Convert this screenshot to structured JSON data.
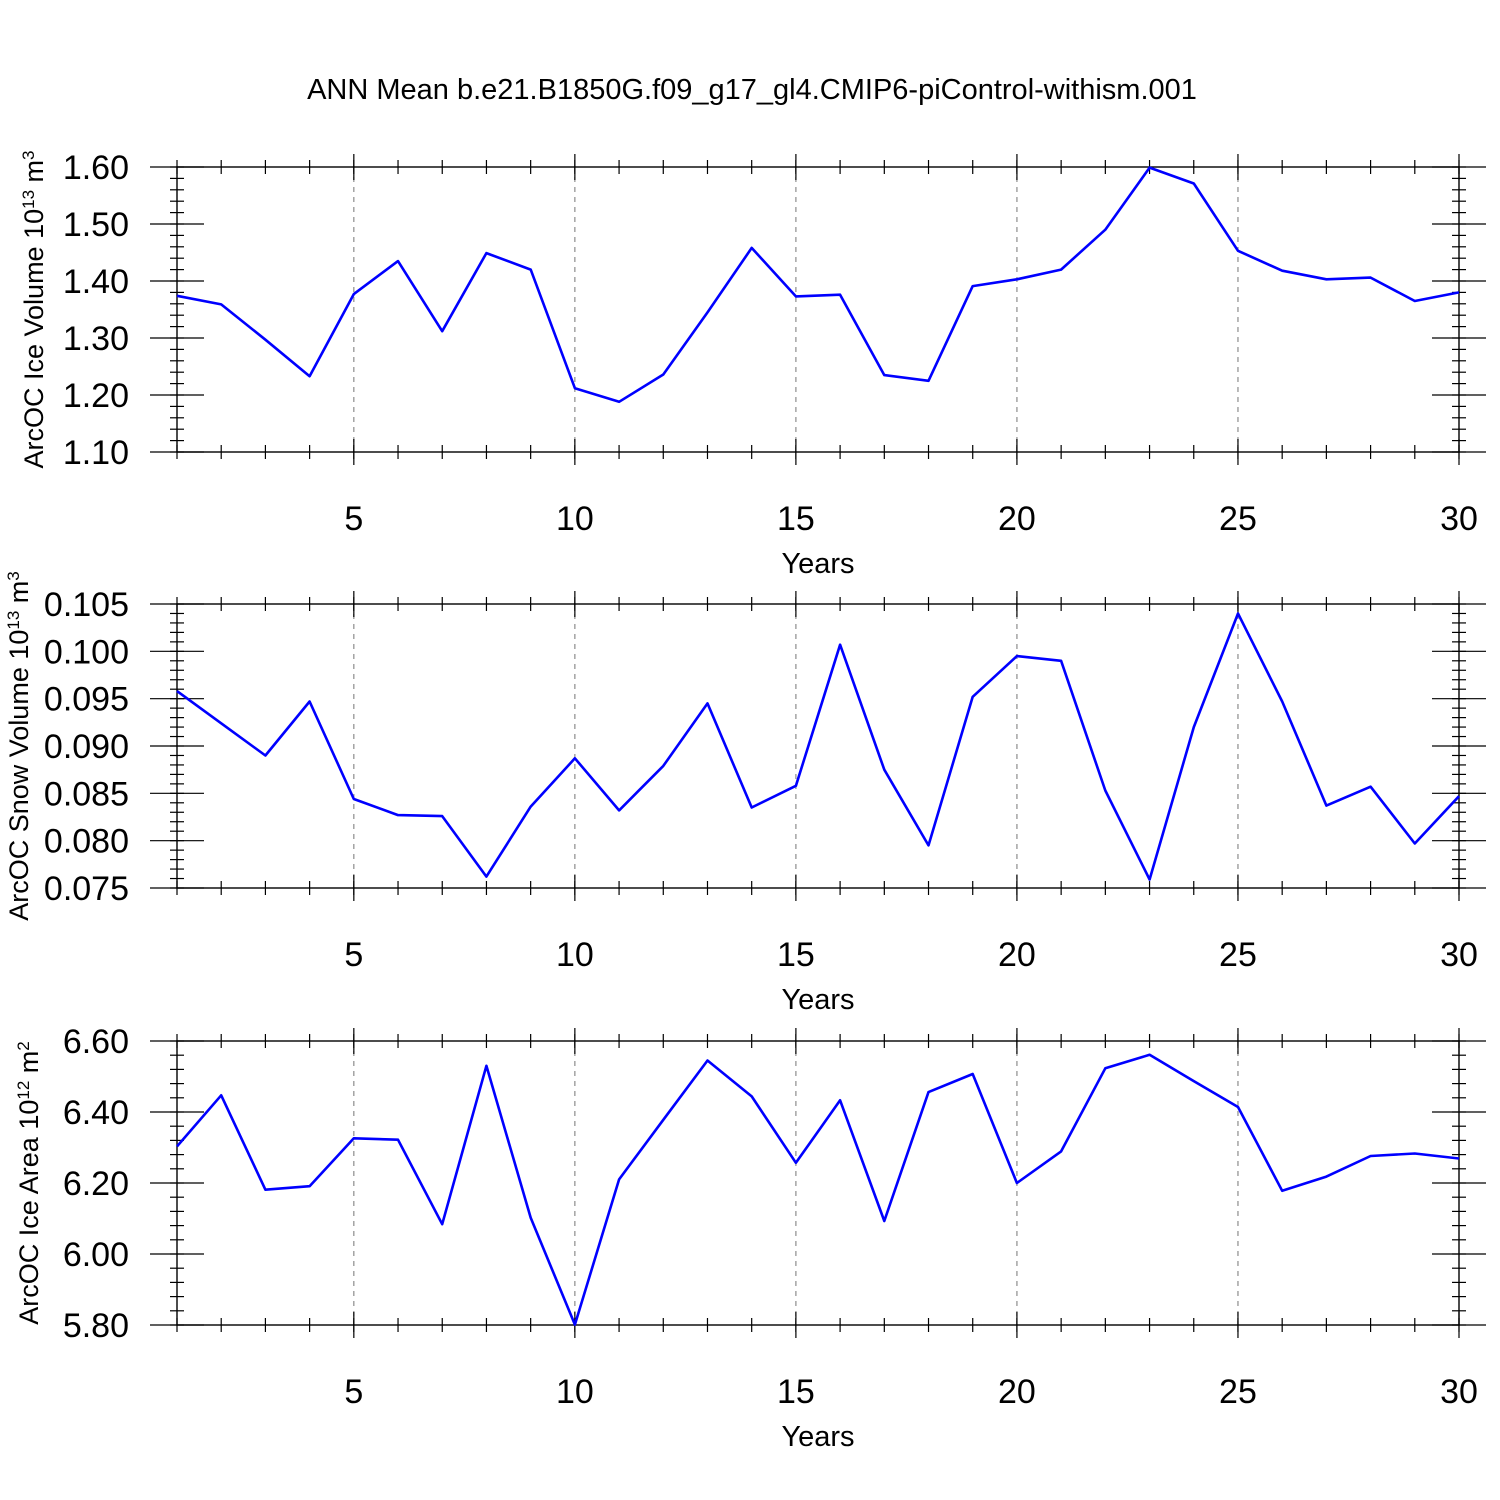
{
  "title": "ANN Mean b.e21.B1850G.f09_g17_gl4.CMIP6-piControl-withism.001",
  "colors": {
    "series": "#0000ff",
    "grid": "#8c8c8c",
    "axis": "#000000"
  },
  "chart_data": [
    {
      "type": "line",
      "ylabel": "ArcOC Ice Volume 10",
      "ylabel_exponent": "13",
      "ylabel_unit": " m",
      "ylabel_unit_exponent": "3",
      "xlabel": "Years",
      "xlim": [
        1,
        30
      ],
      "ylim": [
        1.1,
        1.6
      ],
      "xticks": [
        5,
        10,
        15,
        20,
        25,
        30
      ],
      "yticks": [
        "1.10",
        "1.20",
        "1.30",
        "1.40",
        "1.50",
        "1.60"
      ],
      "x_minor_step": 1,
      "y_minor_step": 0.02,
      "x_grid": true,
      "x": [
        1,
        2,
        3,
        4,
        5,
        6,
        7,
        8,
        9,
        10,
        11,
        12,
        13,
        14,
        15,
        16,
        17,
        18,
        19,
        20,
        21,
        22,
        23,
        24,
        25,
        26,
        27,
        28,
        29,
        30
      ],
      "values": [
        1.374,
        1.359,
        1.297,
        1.233,
        1.377,
        1.435,
        1.312,
        1.449,
        1.42,
        1.212,
        1.188,
        1.236,
        1.345,
        1.458,
        1.373,
        1.376,
        1.235,
        1.225,
        1.391,
        1.403,
        1.42,
        1.49,
        1.599,
        1.571,
        1.453,
        1.418,
        1.403,
        1.406,
        1.365,
        1.38
      ]
    },
    {
      "type": "line",
      "ylabel": "ArcOC Snow Volume 10",
      "ylabel_exponent": "13",
      "ylabel_unit": " m",
      "ylabel_unit_exponent": "3",
      "xlabel": "Years",
      "xlim": [
        1,
        30
      ],
      "ylim": [
        0.075,
        0.105
      ],
      "xticks": [
        5,
        10,
        15,
        20,
        25,
        30
      ],
      "yticks": [
        "0.075",
        "0.080",
        "0.085",
        "0.090",
        "0.095",
        "0.100",
        "0.105"
      ],
      "x_minor_step": 1,
      "y_minor_step": 0.001,
      "x_grid": true,
      "x": [
        1,
        2,
        3,
        4,
        5,
        6,
        7,
        8,
        9,
        10,
        11,
        12,
        13,
        14,
        15,
        16,
        17,
        18,
        19,
        20,
        21,
        22,
        23,
        24,
        25,
        26,
        27,
        28,
        29,
        30
      ],
      "values": [
        0.0958,
        0.0924,
        0.089,
        0.0947,
        0.0844,
        0.0827,
        0.0826,
        0.0762,
        0.0836,
        0.0887,
        0.0832,
        0.0879,
        0.0945,
        0.0835,
        0.0858,
        0.1007,
        0.0875,
        0.0795,
        0.0952,
        0.0995,
        0.099,
        0.0853,
        0.0759,
        0.092,
        0.104,
        0.0947,
        0.0837,
        0.0857,
        0.0797,
        0.0847
      ]
    },
    {
      "type": "line",
      "ylabel": "ArcOC Ice Area 10",
      "ylabel_exponent": "12",
      "ylabel_unit": " m",
      "ylabel_unit_exponent": "2",
      "xlabel": "Years",
      "xlim": [
        1,
        30
      ],
      "ylim": [
        5.8,
        6.6
      ],
      "xticks": [
        5,
        10,
        15,
        20,
        25,
        30
      ],
      "yticks": [
        "5.80",
        "6.00",
        "6.20",
        "6.40",
        "6.60"
      ],
      "x_minor_step": 1,
      "y_minor_step": 0.04,
      "x_grid": true,
      "x": [
        1,
        2,
        3,
        4,
        5,
        6,
        7,
        8,
        9,
        10,
        11,
        12,
        13,
        14,
        15,
        16,
        17,
        18,
        19,
        20,
        21,
        22,
        23,
        24,
        25,
        26,
        27,
        28,
        29,
        30
      ],
      "values": [
        6.303,
        6.447,
        6.181,
        6.191,
        6.326,
        6.322,
        6.084,
        6.53,
        6.102,
        5.801,
        6.21,
        6.378,
        6.545,
        6.444,
        6.257,
        6.433,
        6.093,
        6.456,
        6.507,
        6.2,
        6.289,
        6.523,
        6.561,
        6.487,
        6.414,
        6.178,
        6.218,
        6.276,
        6.283,
        6.269
      ]
    }
  ]
}
